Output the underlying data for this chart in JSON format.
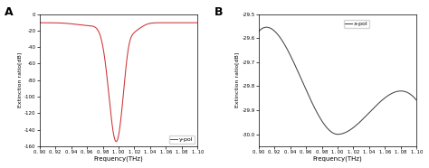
{
  "panel_A": {
    "label": "A",
    "xlabel": "Frequency(THz)",
    "ylabel": "Extinction ratio[dB]",
    "xlim": [
      0.9,
      1.1
    ],
    "ylim": [
      -160,
      0
    ],
    "yticks": [
      0,
      -20,
      -40,
      -60,
      -80,
      -100,
      -120,
      -140,
      -160
    ],
    "xtick_vals": [
      0.9,
      0.92,
      0.94,
      0.96,
      0.98,
      1.0,
      1.02,
      1.04,
      1.06,
      1.08,
      1.1
    ],
    "xtick_labels": [
      "0. 90",
      "0. 92",
      "0. 94",
      "0. 96",
      "0. 98",
      "1. 00",
      "1. 02",
      "1. 04",
      "1. 06",
      "1. 08",
      "1. 10"
    ],
    "legend_label": "y-pol",
    "line_color": "#cc3333"
  },
  "panel_B": {
    "label": "B",
    "xlabel": "Frequency(THz)",
    "ylabel": "Extinction ratio[dB]",
    "xlim": [
      0.9,
      1.1
    ],
    "ylim": [
      -30.05,
      -29.5
    ],
    "yticks": [
      -30.0,
      -29.9,
      -29.8,
      -29.7,
      -29.6,
      -29.5
    ],
    "xtick_vals": [
      0.9,
      0.92,
      0.94,
      0.96,
      0.98,
      1.0,
      1.02,
      1.04,
      1.06,
      1.08,
      1.1
    ],
    "xtick_labels": [
      "0. 90",
      "0. 92",
      "0. 94",
      "0. 96",
      "0. 98",
      "1. 00",
      "1. 02",
      "1. 04",
      "1. 06",
      "1. 08",
      "1. 10"
    ],
    "legend_label": "x-pol",
    "line_color": "#444444"
  }
}
